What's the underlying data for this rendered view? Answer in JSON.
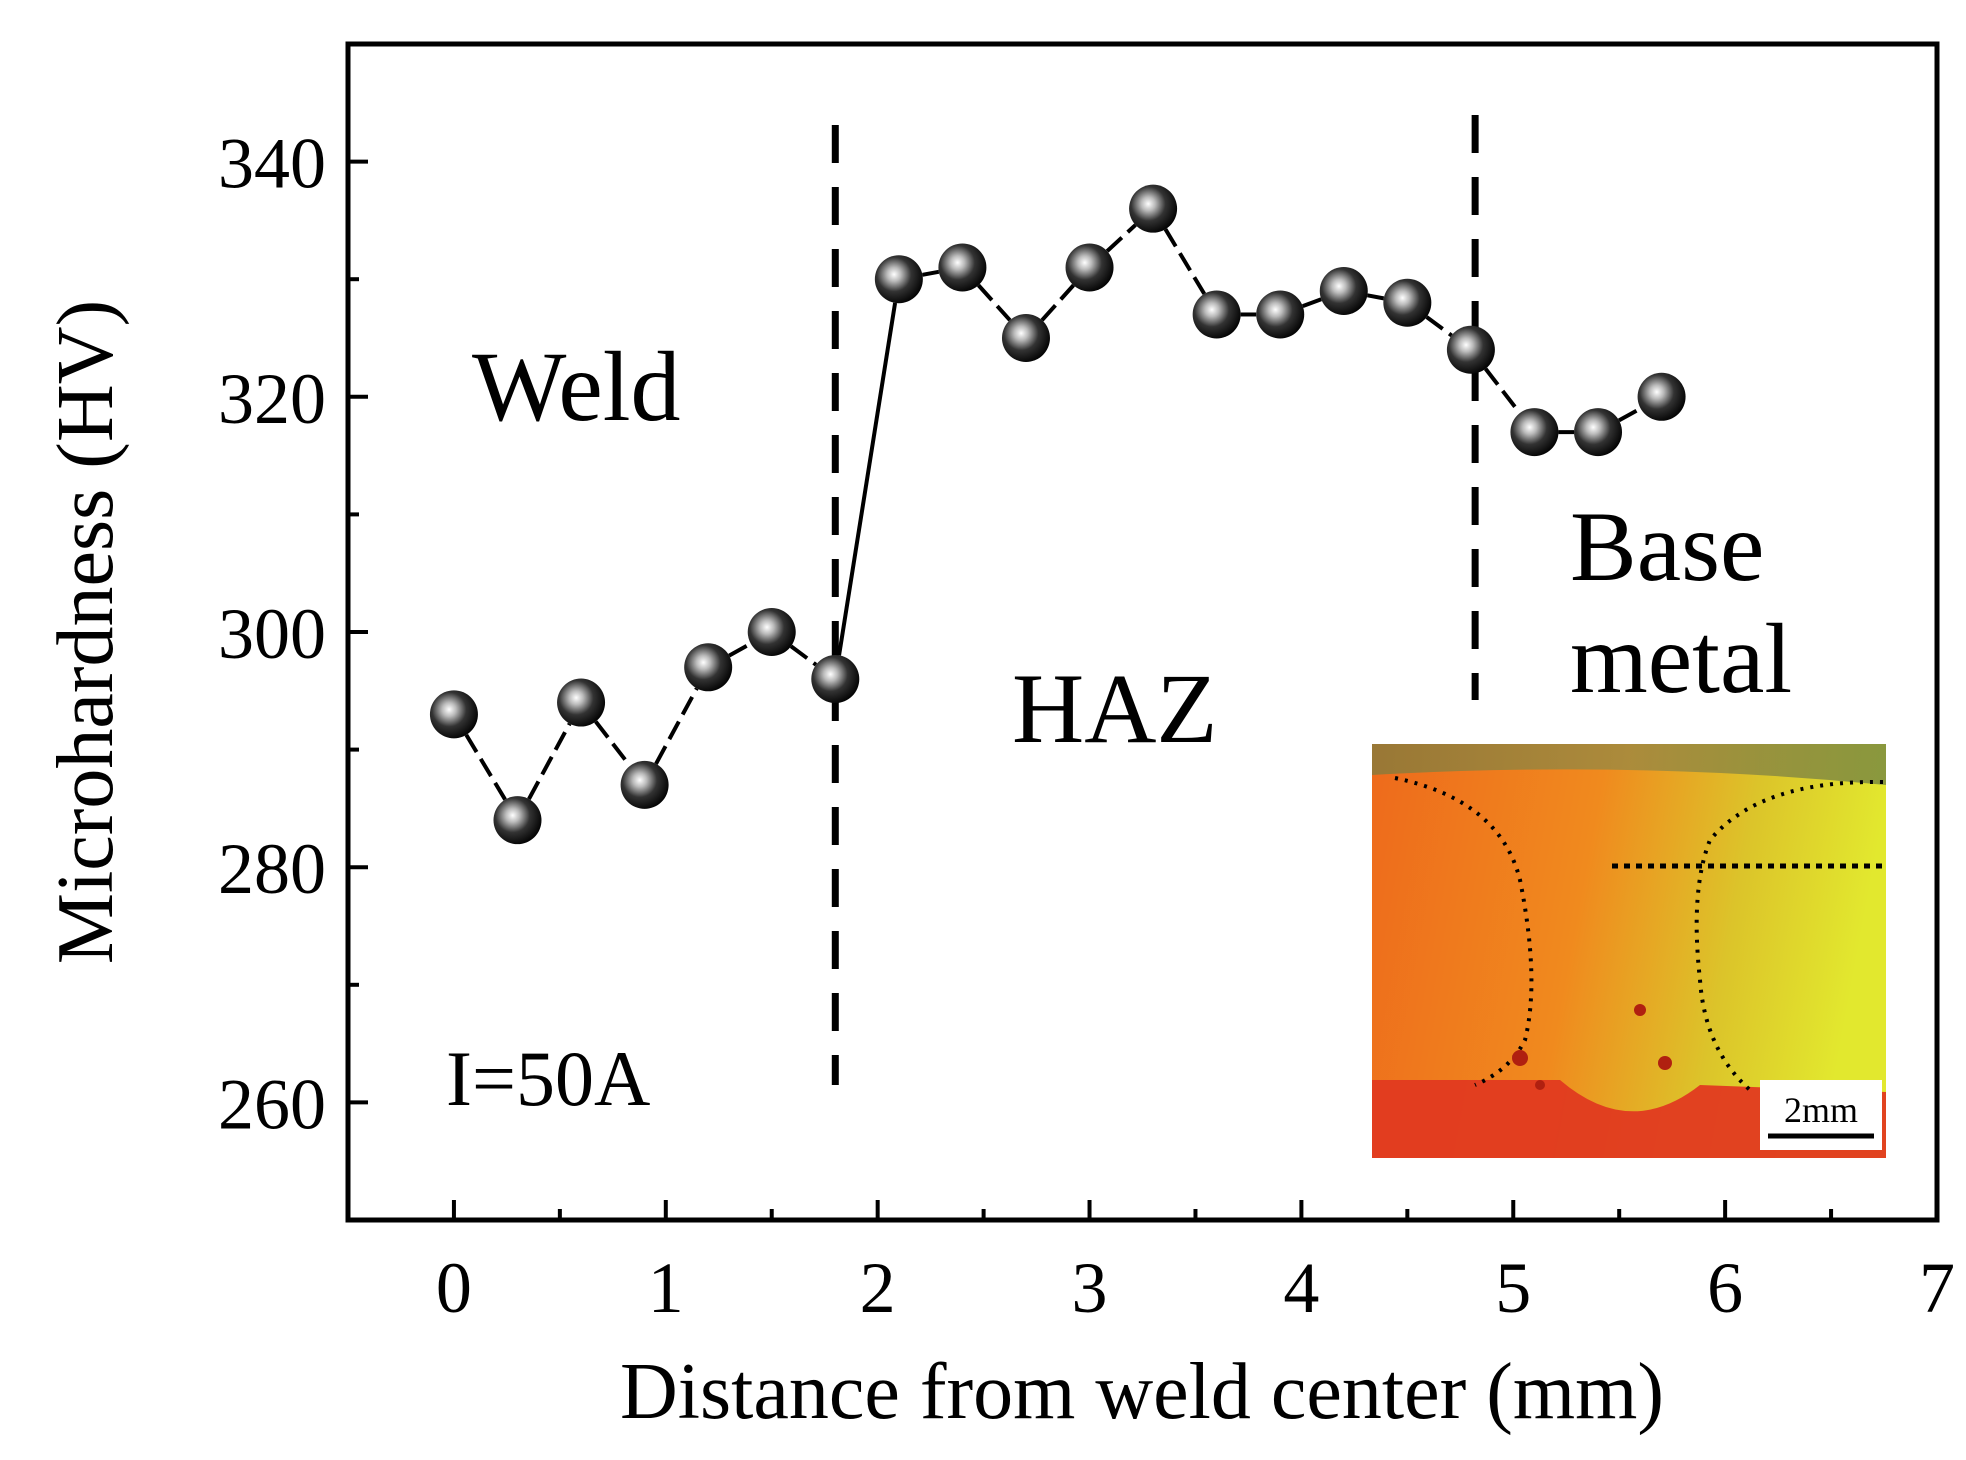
{
  "chart_data": {
    "type": "line",
    "title": "",
    "xlabel": "Distance from weld center (mm)",
    "ylabel": "Microhardness (HV)",
    "xlim": [
      -0.5,
      7
    ],
    "ylim": [
      250,
      350
    ],
    "x_ticks": [
      0,
      1,
      2,
      3,
      4,
      5,
      6,
      7
    ],
    "y_ticks": [
      260,
      280,
      300,
      320,
      340
    ],
    "x_minor_ticks": [
      0.5,
      1.5,
      2.5,
      3.5,
      4.5,
      5.5,
      6.5
    ],
    "y_minor_ticks": [
      270,
      290,
      310,
      330
    ],
    "grid": false,
    "series": [
      {
        "name": "I=50A",
        "x": [
          0,
          0.3,
          0.6,
          0.9,
          1.2,
          1.5,
          1.8,
          2.1,
          2.4,
          2.7,
          3.0,
          3.3,
          3.6,
          3.9,
          4.2,
          4.5,
          4.8,
          5.1,
          5.4,
          5.7
        ],
        "y": [
          293,
          284,
          294,
          287,
          297,
          300,
          296,
          330,
          331,
          325,
          331,
          336,
          327,
          327,
          329,
          328,
          324,
          317,
          317,
          320
        ]
      }
    ],
    "boundaries": [
      1.8,
      4.82
    ],
    "annotations": {
      "weld": "Weld",
      "haz": "HAZ",
      "base_line1": "Base",
      "base_line2": "metal",
      "current": "I=50A",
      "scale_bar": "2mm"
    }
  },
  "colors": {
    "axis": "#000000",
    "marker_dark": "#111111",
    "marker_highlight": "#ffffff",
    "inset_red": "#e03018",
    "inset_orange": "#ee8a1c",
    "inset_yellow": "#e8e22a"
  }
}
